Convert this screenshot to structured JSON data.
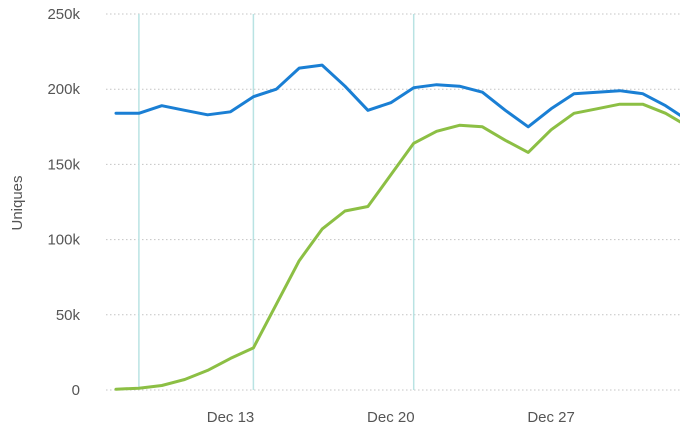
{
  "chart_data": {
    "type": "line",
    "ylabel": "Uniques",
    "ylim": [
      0,
      250000
    ],
    "y_ticks": [
      {
        "value": 0,
        "label": "0"
      },
      {
        "value": 50000,
        "label": "50k"
      },
      {
        "value": 100000,
        "label": "100k"
      },
      {
        "value": 150000,
        "label": "150k"
      },
      {
        "value": 200000,
        "label": "200k"
      },
      {
        "value": 250000,
        "label": "250k"
      }
    ],
    "x": [
      "Dec 8",
      "Dec 9",
      "Dec 10",
      "Dec 11",
      "Dec 12",
      "Dec 13",
      "Dec 14",
      "Dec 15",
      "Dec 16",
      "Dec 17",
      "Dec 18",
      "Dec 19",
      "Dec 20",
      "Dec 21",
      "Dec 22",
      "Dec 23",
      "Dec 24",
      "Dec 25",
      "Dec 26",
      "Dec 27",
      "Dec 28",
      "Dec 29",
      "Dec 30",
      "Dec 31",
      "Jan 1",
      "Jan 2",
      "Jan 3"
    ],
    "x_ticks": [
      "Dec 13",
      "Dec 20",
      "Dec 27"
    ],
    "highlight_dates": [
      "Dec 9",
      "Dec 14",
      "Dec 21"
    ],
    "grid": "horizontal-dotted",
    "series": [
      {
        "color": "#1a7fd4",
        "values": [
          184000,
          184000,
          189000,
          186000,
          183000,
          185000,
          195000,
          200000,
          214000,
          216000,
          202000,
          186000,
          191000,
          201000,
          203000,
          202000,
          198000,
          186000,
          175000,
          187000,
          197000,
          198000,
          199000,
          197000,
          189000,
          179000,
          198000
        ]
      },
      {
        "color": "#8cbf44",
        "values": [
          500,
          1200,
          3000,
          7000,
          13000,
          21000,
          28000,
          57000,
          86000,
          107000,
          119000,
          122000,
          143000,
          164000,
          172000,
          176000,
          175000,
          166000,
          158000,
          173000,
          184000,
          187000,
          190000,
          190000,
          184000,
          175000,
          195000
        ]
      }
    ]
  }
}
